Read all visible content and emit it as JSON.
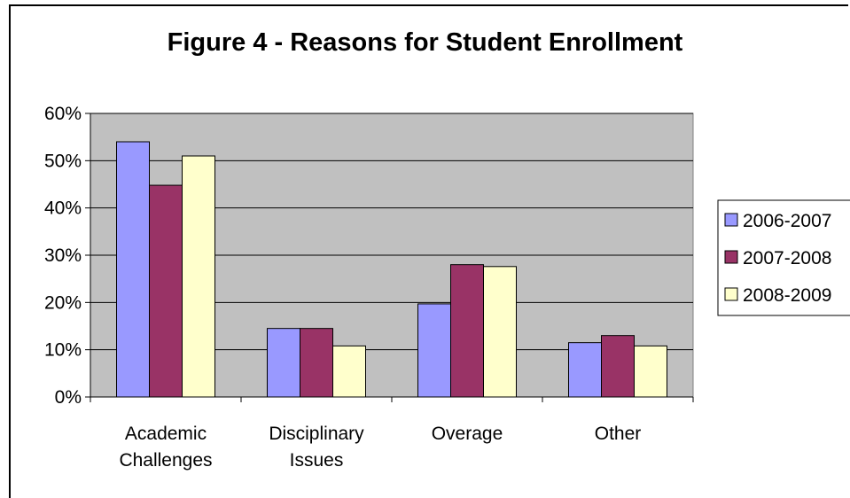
{
  "chart_data": {
    "type": "bar",
    "title": "Figure 4 - Reasons for Student Enrollment",
    "categories": [
      [
        "Academic",
        "Challenges"
      ],
      [
        "Disciplinary",
        "Issues"
      ],
      [
        "Overage"
      ],
      [
        "Other"
      ]
    ],
    "series": [
      {
        "name": "2006-2007",
        "color": "#9999ff",
        "values": [
          54,
          14.5,
          19.7,
          11.5
        ]
      },
      {
        "name": "2007-2008",
        "color": "#993366",
        "values": [
          44.8,
          14.5,
          28,
          13
        ]
      },
      {
        "name": "2008-2009",
        "color": "#ffffcc",
        "values": [
          51,
          10.8,
          27.6,
          10.8
        ]
      }
    ],
    "y_ticks": [
      "0%",
      "10%",
      "20%",
      "30%",
      "40%",
      "50%",
      "60%"
    ],
    "ylim": [
      0,
      60
    ],
    "plot_background": "#c0c0c0",
    "grid": true,
    "legend_position": "right"
  }
}
